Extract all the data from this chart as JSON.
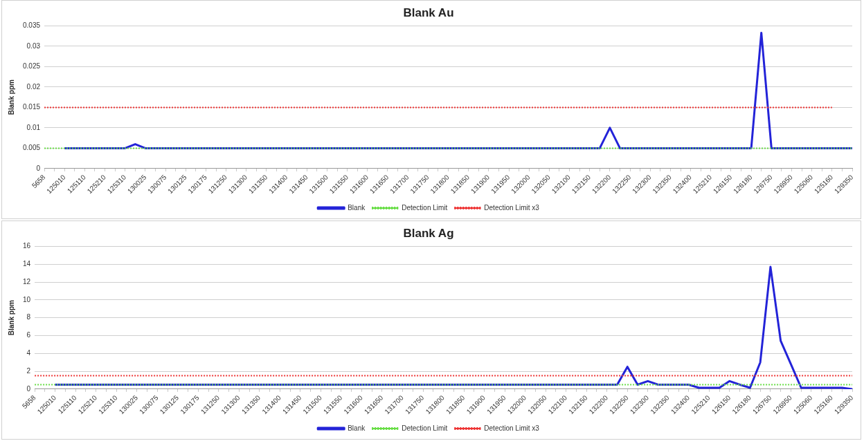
{
  "chart_data": [
    {
      "type": "line",
      "title": "Blank Au",
      "ylabel": "Blank ppm",
      "categories": [
        "5658",
        null,
        "125010",
        null,
        "125110",
        null,
        "125210",
        null,
        "125310",
        null,
        "130025",
        null,
        "130075",
        null,
        "130125",
        null,
        "130175",
        null,
        "131250",
        null,
        "131300",
        null,
        "131350",
        null,
        "131400",
        null,
        "131450",
        null,
        "131500",
        null,
        "131550",
        null,
        "131600",
        null,
        "131650",
        null,
        "131700",
        null,
        "131750",
        null,
        "131800",
        null,
        "131850",
        null,
        "131900",
        null,
        "131950",
        null,
        "132000",
        null,
        "132050",
        null,
        "132100",
        null,
        "132150",
        null,
        "132200",
        null,
        "132250",
        null,
        "132300",
        null,
        "132350",
        null,
        "132400",
        null,
        "125210",
        null,
        "126150",
        null,
        "126180",
        null,
        "126750",
        null,
        "126950",
        null,
        "125060",
        null,
        "125160",
        null,
        "129350"
      ],
      "series": [
        {
          "name": "Blank",
          "color": "#2323d8",
          "line_style": "solid",
          "values": [
            null,
            null,
            0.005,
            0.005,
            0.005,
            0.005,
            0.005,
            0.005,
            0.005,
            0.006,
            0.005,
            0.005,
            0.005,
            0.005,
            0.005,
            0.005,
            0.005,
            0.005,
            0.005,
            0.005,
            0.005,
            0.005,
            0.005,
            0.005,
            0.005,
            0.005,
            0.005,
            0.005,
            0.005,
            0.005,
            0.005,
            0.005,
            0.005,
            0.005,
            0.005,
            0.005,
            0.005,
            0.005,
            0.005,
            0.005,
            0.005,
            0.005,
            0.005,
            0.005,
            0.005,
            0.005,
            0.005,
            0.005,
            0.005,
            0.005,
            0.005,
            0.005,
            0.005,
            0.005,
            0.005,
            0.005,
            0.01,
            0.005,
            0.005,
            0.005,
            0.005,
            0.005,
            0.005,
            0.005,
            0.005,
            0.005,
            0.005,
            0.005,
            0.005,
            0.005,
            0.005,
            0.0333,
            0.005,
            0.005,
            0.005,
            0.005,
            0.005,
            0.005,
            0.005,
            0.005,
            0.005
          ]
        },
        {
          "name": "Detection Limit",
          "color": "#66dd44",
          "line_style": "dotted",
          "values": [
            0.005,
            0.005,
            0.005,
            0.005,
            0.005,
            0.005,
            0.005,
            0.005,
            0.005,
            0.005,
            0.005,
            0.005,
            0.005,
            0.005,
            0.005,
            0.005,
            0.005,
            0.005,
            0.005,
            0.005,
            0.005,
            0.005,
            0.005,
            0.005,
            0.005,
            0.005,
            0.005,
            0.005,
            0.005,
            0.005,
            0.005,
            0.005,
            0.005,
            0.005,
            0.005,
            0.005,
            0.005,
            0.005,
            0.005,
            0.005,
            0.005,
            0.005,
            0.005,
            0.005,
            0.005,
            0.005,
            0.005,
            0.005,
            0.005,
            0.005,
            0.005,
            0.005,
            0.005,
            0.005,
            0.005,
            0.005,
            0.005,
            0.005,
            0.005,
            0.005,
            0.005,
            0.005,
            0.005,
            0.005,
            0.005,
            0.005,
            0.005,
            0.005,
            0.005,
            0.005,
            0.005,
            0.005,
            0.005,
            0.005,
            0.005,
            0.005,
            0.005,
            0.005,
            0.005,
            0.005,
            0.005
          ]
        },
        {
          "name": "Detection Limit x3",
          "color": "#ee3333",
          "line_style": "dotted",
          "values": [
            0.015,
            0.015,
            0.015,
            0.015,
            0.015,
            0.015,
            0.015,
            0.015,
            0.015,
            0.015,
            0.015,
            0.015,
            0.015,
            0.015,
            0.015,
            0.015,
            0.015,
            0.015,
            0.015,
            0.015,
            0.015,
            0.015,
            0.015,
            0.015,
            0.015,
            0.015,
            0.015,
            0.015,
            0.015,
            0.015,
            0.015,
            0.015,
            0.015,
            0.015,
            0.015,
            0.015,
            0.015,
            0.015,
            0.015,
            0.015,
            0.015,
            0.015,
            0.015,
            0.015,
            0.015,
            0.015,
            0.015,
            0.015,
            0.015,
            0.015,
            0.015,
            0.015,
            0.015,
            0.015,
            0.015,
            0.015,
            0.015,
            0.015,
            0.015,
            0.015,
            0.015,
            0.015,
            0.015,
            0.015,
            0.015,
            0.015,
            0.015,
            0.015,
            0.015,
            0.015,
            0.015,
            0.015,
            0.015,
            0.015,
            0.015,
            0.015,
            0.015,
            0.015,
            0.015,
            null,
            null
          ]
        }
      ],
      "ylim": [
        0,
        0.035
      ],
      "yticks": [
        0,
        0.005,
        0.01,
        0.015,
        0.02,
        0.025,
        0.03,
        0.035
      ],
      "grid": "y",
      "legend": "bottom",
      "marker": "none"
    },
    {
      "type": "line",
      "title": "Blank Ag",
      "ylabel": "Blank ppm",
      "categories": [
        "5658",
        null,
        "125010",
        null,
        "125110",
        null,
        "125210",
        null,
        "125310",
        null,
        "130025",
        null,
        "130075",
        null,
        "130125",
        null,
        "130175",
        null,
        "131250",
        null,
        "131300",
        null,
        "131350",
        null,
        "131400",
        null,
        "131450",
        null,
        "131500",
        null,
        "131550",
        null,
        "131600",
        null,
        "131650",
        null,
        "131700",
        null,
        "131750",
        null,
        "131800",
        null,
        "131850",
        null,
        "131900",
        null,
        "131950",
        null,
        "132000",
        null,
        "132050",
        null,
        "132100",
        null,
        "132150",
        null,
        "132200",
        null,
        "132250",
        null,
        "132300",
        null,
        "132350",
        null,
        "132400",
        null,
        "125210",
        null,
        "126150",
        null,
        "126180",
        null,
        "126750",
        null,
        "126950",
        null,
        "125060",
        null,
        "125160",
        null,
        "129350"
      ],
      "series": [
        {
          "name": "Blank",
          "color": "#2323d8",
          "line_style": "solid",
          "values": [
            null,
            null,
            0.5,
            0.5,
            0.5,
            0.5,
            0.5,
            0.5,
            0.5,
            0.5,
            0.5,
            0.5,
            0.5,
            0.5,
            0.5,
            0.5,
            0.5,
            0.5,
            0.5,
            0.5,
            0.5,
            0.5,
            0.5,
            0.5,
            0.5,
            0.5,
            0.5,
            0.5,
            0.5,
            0.5,
            0.5,
            0.5,
            0.5,
            0.5,
            0.5,
            0.5,
            0.5,
            0.5,
            0.5,
            0.5,
            0.5,
            0.5,
            0.5,
            0.5,
            0.5,
            0.5,
            0.5,
            0.5,
            0.5,
            0.5,
            0.5,
            0.5,
            0.5,
            0.5,
            0.5,
            0.5,
            0.5,
            0.5,
            2.5,
            0.5,
            0.9,
            0.5,
            0.5,
            0.5,
            0.5,
            0.15,
            0.15,
            0.15,
            0.9,
            0.5,
            0.15,
            3,
            13.7,
            5.4,
            2.8,
            0.15,
            0.15,
            0.15,
            0.15,
            0.15,
            0
          ]
        },
        {
          "name": "Detection Limit",
          "color": "#66dd44",
          "line_style": "dotted",
          "values": [
            0.5,
            0.5,
            0.5,
            0.5,
            0.5,
            0.5,
            0.5,
            0.5,
            0.5,
            0.5,
            0.5,
            0.5,
            0.5,
            0.5,
            0.5,
            0.5,
            0.5,
            0.5,
            0.5,
            0.5,
            0.5,
            0.5,
            0.5,
            0.5,
            0.5,
            0.5,
            0.5,
            0.5,
            0.5,
            0.5,
            0.5,
            0.5,
            0.5,
            0.5,
            0.5,
            0.5,
            0.5,
            0.5,
            0.5,
            0.5,
            0.5,
            0.5,
            0.5,
            0.5,
            0.5,
            0.5,
            0.5,
            0.5,
            0.5,
            0.5,
            0.5,
            0.5,
            0.5,
            0.5,
            0.5,
            0.5,
            0.5,
            0.5,
            0.5,
            0.5,
            0.5,
            0.5,
            0.5,
            0.5,
            0.5,
            0.5,
            0.5,
            0.5,
            0.5,
            0.5,
            0.5,
            0.5,
            0.5,
            0.5,
            0.5,
            0.5,
            0.5,
            0.5,
            0.5,
            0.5,
            0.5
          ]
        },
        {
          "name": "Detection Limit x3",
          "color": "#ee3333",
          "line_style": "dotted",
          "values": [
            1.5,
            1.5,
            1.5,
            1.5,
            1.5,
            1.5,
            1.5,
            1.5,
            1.5,
            1.5,
            1.5,
            1.5,
            1.5,
            1.5,
            1.5,
            1.5,
            1.5,
            1.5,
            1.5,
            1.5,
            1.5,
            1.5,
            1.5,
            1.5,
            1.5,
            1.5,
            1.5,
            1.5,
            1.5,
            1.5,
            1.5,
            1.5,
            1.5,
            1.5,
            1.5,
            1.5,
            1.5,
            1.5,
            1.5,
            1.5,
            1.5,
            1.5,
            1.5,
            1.5,
            1.5,
            1.5,
            1.5,
            1.5,
            1.5,
            1.5,
            1.5,
            1.5,
            1.5,
            1.5,
            1.5,
            1.5,
            1.5,
            1.5,
            1.5,
            1.5,
            1.5,
            1.5,
            1.5,
            1.5,
            1.5,
            1.5,
            1.5,
            1.5,
            1.5,
            1.5,
            1.5,
            1.5,
            1.5,
            1.5,
            1.5,
            1.5,
            1.5,
            1.5,
            1.5,
            1.5,
            1.5
          ]
        }
      ],
      "ylim": [
        0,
        16
      ],
      "yticks": [
        0,
        2,
        4,
        6,
        8,
        10,
        12,
        14,
        16
      ],
      "grid": "y",
      "legend": "bottom",
      "marker": "none"
    }
  ]
}
